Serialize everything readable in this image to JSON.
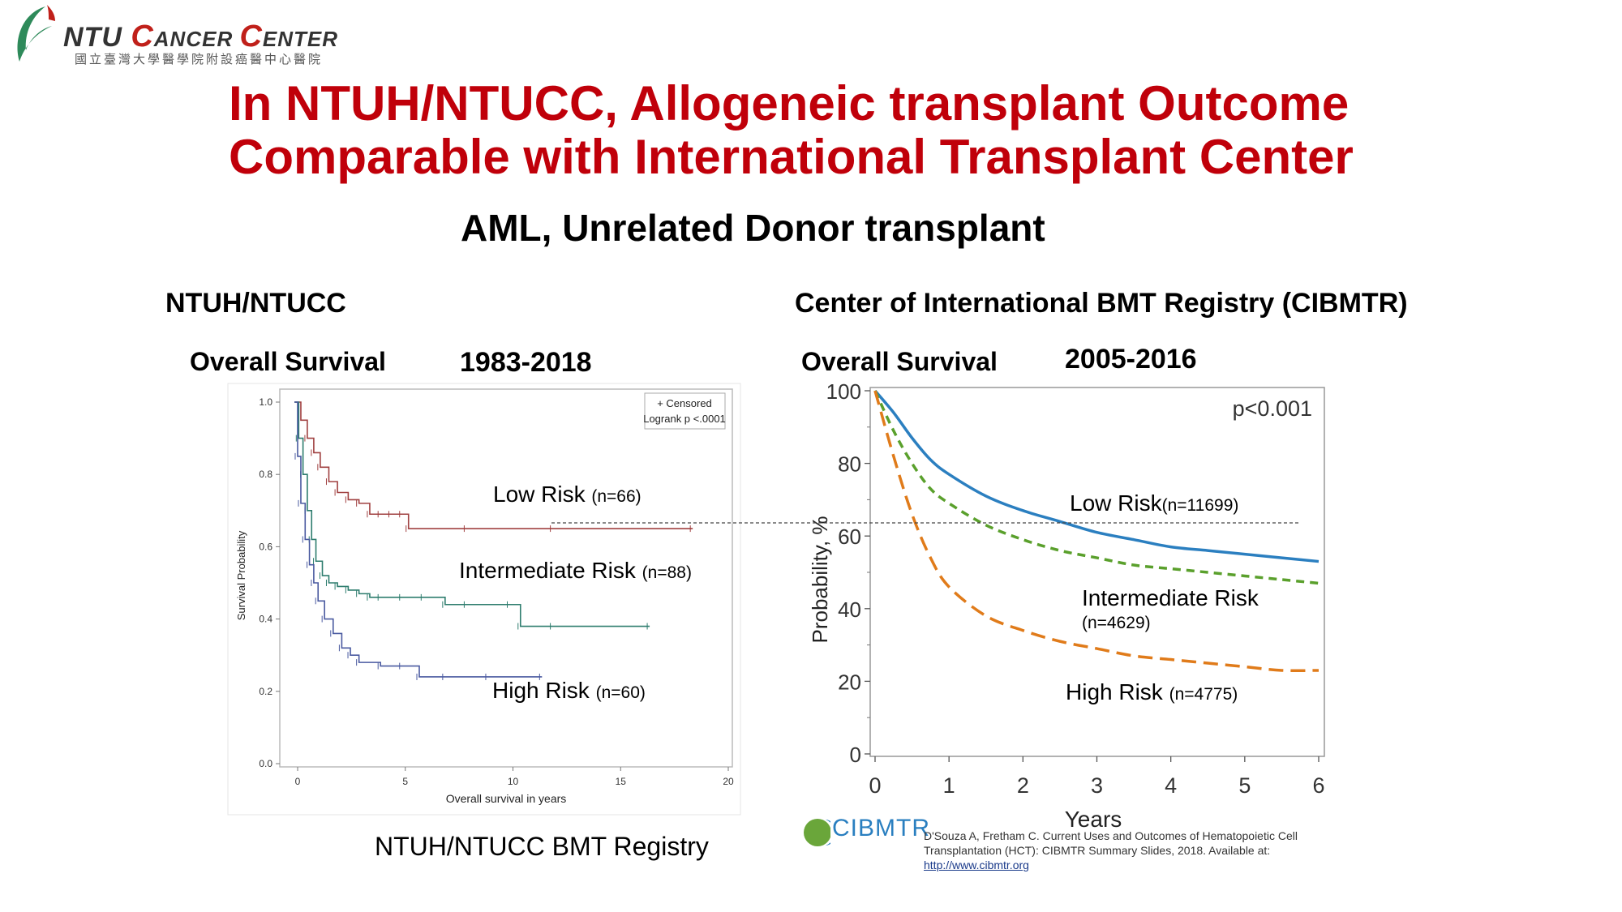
{
  "logo": {
    "name_part1": "NTU ",
    "name_C": "C",
    "name_ancer": "ANCER ",
    "name_C2": "C",
    "name_enter": "ENTER",
    "subtitle": "國立臺灣大學醫學院附設癌醫中心醫院"
  },
  "title": {
    "line1": "In NTUH/NTUCC, Allogeneic transplant Outcome",
    "line2": "Comparable with International Transplant Center"
  },
  "subtitle": "AML, Unrelated Donor transplant",
  "left": {
    "heading": "NTUH/NTUCC",
    "os_label": "Overall Survival",
    "period": "1983-2018",
    "registry": "NTUH/NTUCC BMT Registry",
    "legend": {
      "line1": "+ Censored",
      "line2": "Logrank p <.0001"
    },
    "labels": [
      {
        "name": "Low Risk",
        "n": "(n=66)"
      },
      {
        "name": "Intermediate Risk",
        "n": "(n=88)"
      },
      {
        "name": "High Risk",
        "n": "(n=60)"
      }
    ]
  },
  "right": {
    "heading": "Center of International BMT Registry (CIBMTR)",
    "os_label": "Overall Survival",
    "period": "2005-2016",
    "pvalue": "p<0.001",
    "labels": [
      {
        "name": "Low Risk",
        "n": "(n=11699)"
      },
      {
        "name": "Intermediate Risk",
        "n": "(n=4629)"
      },
      {
        "name": "High Risk",
        "n": "(n=4775)"
      }
    ],
    "cibmtr_logo": "CIBMTR",
    "citation": "D'Souza A, Fretham C. Current Uses and Outcomes of Hematopoietic Cell Transplantation (HCT): CIBMTR Summary Slides, 2018. Available at:",
    "citation_link": "http://www.cibmtr.org"
  },
  "colors": {
    "title_red": "#c0000a",
    "low_left": "#a04040",
    "int_left": "#2e7d6e",
    "high_left": "#4a5aa0",
    "low_right": "#2b7fc0",
    "int_right": "#5aa02c",
    "high_right": "#e07b1a"
  },
  "chart_data": [
    {
      "type": "line",
      "xlabel": "Overall survival in years",
      "ylabel": "Survival Probability",
      "xlim": [
        0,
        20
      ],
      "ylim": [
        0,
        1
      ],
      "xticks": [
        "0",
        "5",
        "10",
        "15",
        "20"
      ],
      "yticks": [
        "0.0",
        "0.2",
        "0.4",
        "0.6",
        "0.8",
        "1.0"
      ],
      "series": [
        {
          "name": "Low Risk",
          "x": [
            0,
            0.3,
            0.6,
            0.9,
            1.2,
            1.6,
            2.0,
            2.5,
            3.0,
            3.5,
            4.0,
            4.5,
            5.0,
            5.3,
            8.0,
            12.0,
            18.5
          ],
          "y": [
            1.0,
            0.95,
            0.9,
            0.86,
            0.82,
            0.78,
            0.75,
            0.73,
            0.72,
            0.69,
            0.69,
            0.69,
            0.69,
            0.65,
            0.65,
            0.65,
            0.65
          ]
        },
        {
          "name": "Intermediate Risk",
          "x": [
            0,
            0.2,
            0.4,
            0.6,
            0.8,
            1.0,
            1.3,
            1.6,
            2.0,
            2.5,
            3.0,
            3.5,
            4.0,
            5.0,
            6.0,
            7.0,
            8.0,
            10.0,
            10.5,
            12.0,
            16.5
          ],
          "y": [
            1.0,
            0.9,
            0.8,
            0.7,
            0.62,
            0.56,
            0.52,
            0.5,
            0.49,
            0.48,
            0.47,
            0.46,
            0.46,
            0.46,
            0.46,
            0.44,
            0.44,
            0.44,
            0.38,
            0.38,
            0.38
          ]
        },
        {
          "name": "High Risk",
          "x": [
            0,
            0.15,
            0.3,
            0.5,
            0.7,
            0.9,
            1.1,
            1.4,
            1.8,
            2.2,
            2.6,
            3.0,
            4.0,
            5.0,
            5.8,
            7.0,
            9.0,
            11.5
          ],
          "y": [
            1.0,
            0.85,
            0.72,
            0.62,
            0.55,
            0.5,
            0.45,
            0.4,
            0.36,
            0.32,
            0.3,
            0.28,
            0.27,
            0.27,
            0.24,
            0.24,
            0.24,
            0.24
          ]
        }
      ]
    },
    {
      "type": "line",
      "xlabel": "Years",
      "ylabel": "Probability, %",
      "xlim": [
        0,
        6
      ],
      "ylim": [
        0,
        100
      ],
      "xticks": [
        "0",
        "1",
        "2",
        "3",
        "4",
        "5",
        "6"
      ],
      "yticks": [
        "0",
        "20",
        "40",
        "60",
        "80",
        "100"
      ],
      "series": [
        {
          "name": "Low Risk",
          "x": [
            0,
            0.25,
            0.5,
            0.75,
            1,
            1.5,
            2,
            2.5,
            3,
            3.5,
            4,
            4.5,
            5,
            5.5,
            6
          ],
          "y": [
            100,
            94,
            87,
            81,
            77,
            71,
            67,
            64,
            61,
            59,
            57,
            56,
            55,
            54,
            53
          ]
        },
        {
          "name": "Intermediate Risk",
          "x": [
            0,
            0.25,
            0.5,
            0.75,
            1,
            1.5,
            2,
            2.5,
            3,
            3.5,
            4,
            4.5,
            5,
            5.5,
            6
          ],
          "y": [
            100,
            89,
            80,
            73,
            69,
            63,
            59,
            56,
            54,
            52,
            51,
            50,
            49,
            48,
            47
          ]
        },
        {
          "name": "High Risk",
          "x": [
            0,
            0.25,
            0.5,
            0.75,
            1,
            1.5,
            2,
            2.5,
            3,
            3.5,
            4,
            4.5,
            5,
            5.5,
            6
          ],
          "y": [
            100,
            82,
            66,
            54,
            46,
            38,
            34,
            31,
            29,
            27,
            26,
            25,
            24,
            23,
            23
          ]
        }
      ],
      "reference_line_y": 65
    }
  ]
}
